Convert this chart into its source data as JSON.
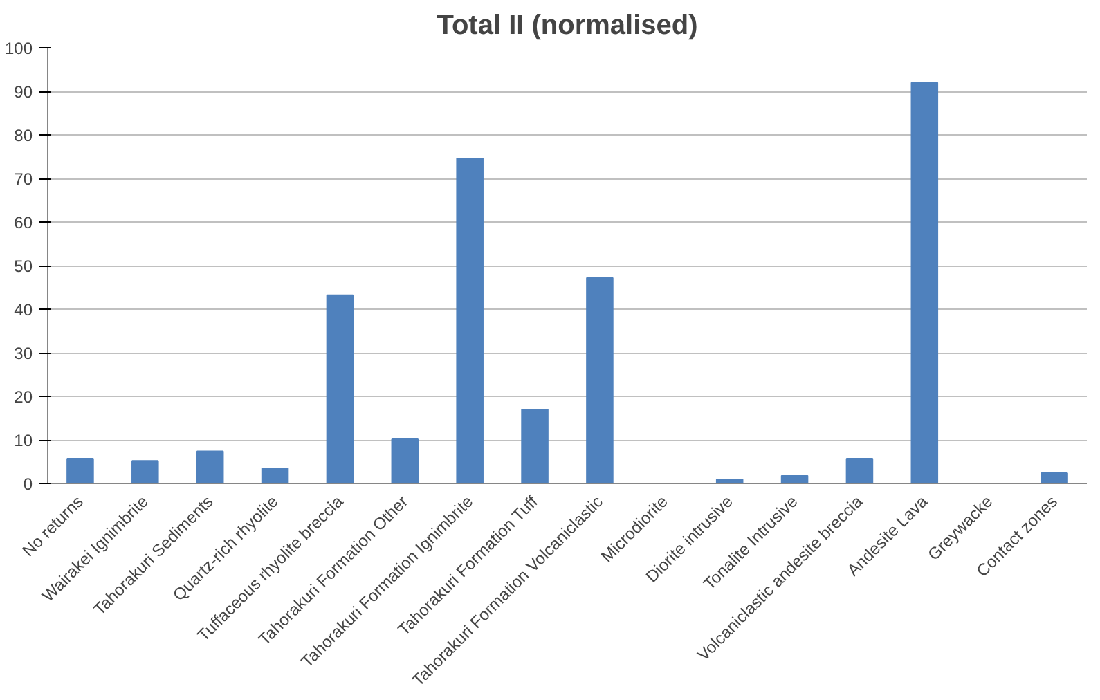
{
  "chart_data": {
    "type": "bar",
    "title": "Total II (normalised)",
    "categories": [
      "No returns",
      "Wairakei Ignimbrite",
      "Tahorakuri Sediments",
      "Quartz-rich rhyolite",
      "Tuffaceous rhyolite breccia",
      "Tahorakuri Formation Other",
      "Tahorakuri Formation Ignimbrite",
      "Tahorakuri Formation Tuff",
      "Tahorakuri Formation Volcaniclastic",
      "Microdiorite",
      "Diorite intrusive",
      "Tonalite Intrusive",
      "Volcaniclastic andesite breccia",
      "Andesite Lava",
      "Greywacke",
      "Contact zones"
    ],
    "values": [
      5.7,
      5.2,
      7.4,
      3.5,
      43.2,
      10.3,
      74.6,
      17,
      47.2,
      0,
      0.9,
      1.8,
      5.7,
      92,
      0,
      2.4
    ],
    "color": "#4f81bd",
    "ylim": [
      0,
      100
    ],
    "yticks": [
      0,
      10,
      20,
      30,
      40,
      50,
      60,
      70,
      80,
      90,
      100
    ],
    "grid": "y"
  }
}
